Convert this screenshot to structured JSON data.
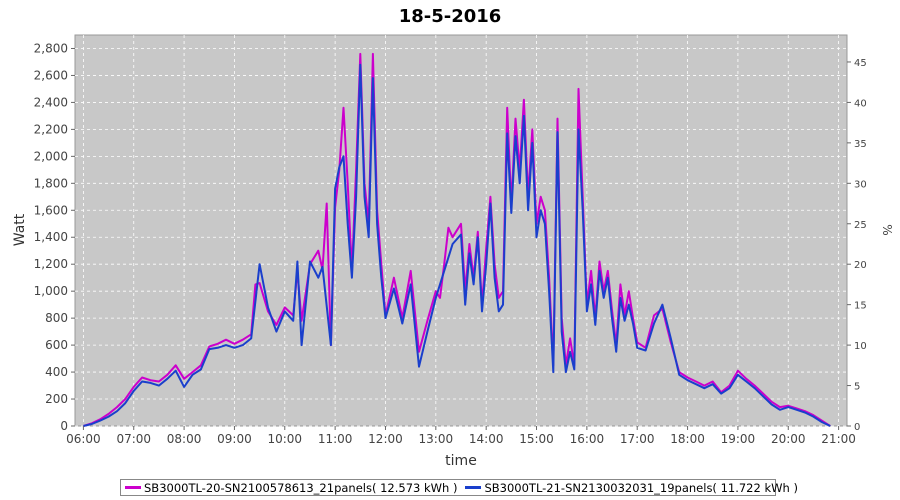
{
  "chart_data": {
    "type": "line",
    "title": "18-5-2016",
    "xlabel": "time",
    "ylabel": "Watt",
    "y2label": "%",
    "ylim": [
      0,
      2900
    ],
    "y2lim": [
      0,
      48.333
    ],
    "xlim": [
      "05:50",
      "21:10"
    ],
    "grid": true,
    "legend_position": "bottom",
    "x_ticks": [
      "06:00",
      "07:00",
      "08:00",
      "09:00",
      "10:00",
      "11:00",
      "12:00",
      "13:00",
      "14:00",
      "15:00",
      "16:00",
      "17:00",
      "18:00",
      "19:00",
      "20:00",
      "21:00"
    ],
    "y_ticks": [
      "0",
      "200",
      "400",
      "600",
      "800",
      "1,000",
      "1,200",
      "1,400",
      "1,600",
      "1,800",
      "2,000",
      "2,200",
      "2,400",
      "2,600",
      "2,800"
    ],
    "y2_ticks": [
      "0",
      "5",
      "10",
      "15",
      "20",
      "25",
      "30",
      "35",
      "40",
      "45"
    ],
    "series": [
      {
        "name": "SB3000TL-20-SN2100578613_21panels( 12.573 kWh )",
        "color": "#cc00cc",
        "points": [
          [
            "06:00",
            0
          ],
          [
            "06:10",
            20
          ],
          [
            "06:20",
            50
          ],
          [
            "06:30",
            90
          ],
          [
            "06:40",
            140
          ],
          [
            "06:50",
            200
          ],
          [
            "07:00",
            290
          ],
          [
            "07:10",
            360
          ],
          [
            "07:20",
            340
          ],
          [
            "07:30",
            330
          ],
          [
            "07:40",
            380
          ],
          [
            "07:50",
            450
          ],
          [
            "08:00",
            350
          ],
          [
            "08:10",
            400
          ],
          [
            "08:20",
            450
          ],
          [
            "08:30",
            590
          ],
          [
            "08:40",
            610
          ],
          [
            "08:50",
            640
          ],
          [
            "09:00",
            610
          ],
          [
            "09:10",
            640
          ],
          [
            "09:20",
            680
          ],
          [
            "09:25",
            1050
          ],
          [
            "09:30",
            1060
          ],
          [
            "09:40",
            850
          ],
          [
            "09:50",
            750
          ],
          [
            "10:00",
            880
          ],
          [
            "10:10",
            820
          ],
          [
            "10:15",
            1150
          ],
          [
            "10:20",
            780
          ],
          [
            "10:30",
            1200
          ],
          [
            "10:40",
            1300
          ],
          [
            "10:45",
            1160
          ],
          [
            "10:50",
            1650
          ],
          [
            "10:55",
            600
          ],
          [
            "11:00",
            1620
          ],
          [
            "11:05",
            1900
          ],
          [
            "11:10",
            2360
          ],
          [
            "11:15",
            1800
          ],
          [
            "11:20",
            1150
          ],
          [
            "11:25",
            1900
          ],
          [
            "11:30",
            2760
          ],
          [
            "11:35",
            1800
          ],
          [
            "11:40",
            1500
          ],
          [
            "11:45",
            2760
          ],
          [
            "11:50",
            1600
          ],
          [
            "11:55",
            1200
          ],
          [
            "12:00",
            820
          ],
          [
            "12:10",
            1100
          ],
          [
            "12:20",
            800
          ],
          [
            "12:30",
            1150
          ],
          [
            "12:40",
            550
          ],
          [
            "12:50",
            780
          ],
          [
            "13:00",
            1000
          ],
          [
            "13:05",
            950
          ],
          [
            "13:10",
            1200
          ],
          [
            "13:15",
            1470
          ],
          [
            "13:20",
            1400
          ],
          [
            "13:30",
            1500
          ],
          [
            "13:35",
            1000
          ],
          [
            "13:40",
            1350
          ],
          [
            "13:45",
            1100
          ],
          [
            "13:50",
            1440
          ],
          [
            "13:55",
            900
          ],
          [
            "14:00",
            1320
          ],
          [
            "14:05",
            1700
          ],
          [
            "14:10",
            1200
          ],
          [
            "14:15",
            950
          ],
          [
            "14:20",
            1000
          ],
          [
            "14:25",
            2360
          ],
          [
            "14:30",
            1640
          ],
          [
            "14:35",
            2280
          ],
          [
            "14:40",
            1900
          ],
          [
            "14:45",
            2420
          ],
          [
            "14:50",
            1700
          ],
          [
            "14:55",
            2200
          ],
          [
            "15:00",
            1500
          ],
          [
            "15:05",
            1700
          ],
          [
            "15:10",
            1600
          ],
          [
            "15:15",
            1100
          ],
          [
            "15:20",
            450
          ],
          [
            "15:25",
            2280
          ],
          [
            "15:30",
            800
          ],
          [
            "15:35",
            450
          ],
          [
            "15:40",
            650
          ],
          [
            "15:45",
            450
          ],
          [
            "15:50",
            2500
          ],
          [
            "15:55",
            1700
          ],
          [
            "16:00",
            900
          ],
          [
            "16:05",
            1150
          ],
          [
            "16:10",
            800
          ],
          [
            "16:15",
            1220
          ],
          [
            "16:20",
            1000
          ],
          [
            "16:25",
            1150
          ],
          [
            "16:30",
            860
          ],
          [
            "16:35",
            600
          ],
          [
            "16:40",
            1050
          ],
          [
            "16:45",
            820
          ],
          [
            "16:50",
            1000
          ],
          [
            "16:55",
            800
          ],
          [
            "17:00",
            620
          ],
          [
            "17:10",
            580
          ],
          [
            "17:20",
            820
          ],
          [
            "17:30",
            870
          ],
          [
            "17:40",
            620
          ],
          [
            "17:50",
            400
          ],
          [
            "18:00",
            360
          ],
          [
            "18:10",
            330
          ],
          [
            "18:20",
            300
          ],
          [
            "18:30",
            330
          ],
          [
            "18:40",
            250
          ],
          [
            "18:50",
            300
          ],
          [
            "19:00",
            410
          ],
          [
            "19:10",
            350
          ],
          [
            "19:20",
            300
          ],
          [
            "19:30",
            240
          ],
          [
            "19:40",
            180
          ],
          [
            "19:50",
            140
          ],
          [
            "20:00",
            150
          ],
          [
            "20:10",
            130
          ],
          [
            "20:20",
            110
          ],
          [
            "20:30",
            80
          ],
          [
            "20:40",
            40
          ],
          [
            "20:50",
            0
          ]
        ]
      },
      {
        "name": "SB3000TL-21-SN2130032031_19panels( 11.722 kWh )",
        "color": "#1a3fcc",
        "points": [
          [
            "06:00",
            0
          ],
          [
            "06:10",
            15
          ],
          [
            "06:20",
            40
          ],
          [
            "06:30",
            70
          ],
          [
            "06:40",
            110
          ],
          [
            "06:50",
            170
          ],
          [
            "07:00",
            260
          ],
          [
            "07:10",
            330
          ],
          [
            "07:20",
            320
          ],
          [
            "07:30",
            300
          ],
          [
            "07:40",
            350
          ],
          [
            "07:50",
            410
          ],
          [
            "08:00",
            290
          ],
          [
            "08:10",
            380
          ],
          [
            "08:20",
            420
          ],
          [
            "08:30",
            570
          ],
          [
            "08:40",
            580
          ],
          [
            "08:50",
            600
          ],
          [
            "09:00",
            580
          ],
          [
            "09:10",
            600
          ],
          [
            "09:20",
            650
          ],
          [
            "09:30",
            1200
          ],
          [
            "09:40",
            880
          ],
          [
            "09:50",
            700
          ],
          [
            "10:00",
            850
          ],
          [
            "10:10",
            780
          ],
          [
            "10:15",
            1220
          ],
          [
            "10:20",
            600
          ],
          [
            "10:30",
            1220
          ],
          [
            "10:40",
            1100
          ],
          [
            "10:45",
            1180
          ],
          [
            "10:55",
            600
          ],
          [
            "11:00",
            1760
          ],
          [
            "11:05",
            1920
          ],
          [
            "11:10",
            2000
          ],
          [
            "11:15",
            1500
          ],
          [
            "11:20",
            1100
          ],
          [
            "11:25",
            1700
          ],
          [
            "11:30",
            2680
          ],
          [
            "11:35",
            1700
          ],
          [
            "11:40",
            1400
          ],
          [
            "11:45",
            2580
          ],
          [
            "11:50",
            1500
          ],
          [
            "11:55",
            1100
          ],
          [
            "12:00",
            800
          ],
          [
            "12:10",
            1020
          ],
          [
            "12:20",
            760
          ],
          [
            "12:30",
            1050
          ],
          [
            "12:40",
            440
          ],
          [
            "12:50",
            700
          ],
          [
            "13:00",
            950
          ],
          [
            "13:10",
            1150
          ],
          [
            "13:20",
            1350
          ],
          [
            "13:30",
            1420
          ],
          [
            "13:35",
            900
          ],
          [
            "13:40",
            1280
          ],
          [
            "13:45",
            1050
          ],
          [
            "13:50",
            1400
          ],
          [
            "13:55",
            850
          ],
          [
            "14:00",
            1200
          ],
          [
            "14:05",
            1650
          ],
          [
            "14:10",
            1100
          ],
          [
            "14:15",
            850
          ],
          [
            "14:20",
            900
          ],
          [
            "14:25",
            2170
          ],
          [
            "14:30",
            1580
          ],
          [
            "14:35",
            2150
          ],
          [
            "14:40",
            1800
          ],
          [
            "14:45",
            2300
          ],
          [
            "14:50",
            1600
          ],
          [
            "14:55",
            2100
          ],
          [
            "15:00",
            1400
          ],
          [
            "15:05",
            1600
          ],
          [
            "15:10",
            1500
          ],
          [
            "15:15",
            1000
          ],
          [
            "15:20",
            400
          ],
          [
            "15:25",
            2180
          ],
          [
            "15:30",
            700
          ],
          [
            "15:35",
            400
          ],
          [
            "15:40",
            550
          ],
          [
            "15:45",
            420
          ],
          [
            "15:50",
            2200
          ],
          [
            "15:55",
            1600
          ],
          [
            "16:00",
            850
          ],
          [
            "16:05",
            1050
          ],
          [
            "16:10",
            750
          ],
          [
            "16:15",
            1150
          ],
          [
            "16:20",
            950
          ],
          [
            "16:25",
            1100
          ],
          [
            "16:30",
            800
          ],
          [
            "16:35",
            550
          ],
          [
            "16:40",
            950
          ],
          [
            "16:45",
            780
          ],
          [
            "16:50",
            900
          ],
          [
            "16:55",
            760
          ],
          [
            "17:00",
            580
          ],
          [
            "17:10",
            560
          ],
          [
            "17:20",
            760
          ],
          [
            "17:30",
            900
          ],
          [
            "17:40",
            650
          ],
          [
            "17:50",
            380
          ],
          [
            "18:00",
            340
          ],
          [
            "18:10",
            310
          ],
          [
            "18:20",
            280
          ],
          [
            "18:30",
            310
          ],
          [
            "18:40",
            240
          ],
          [
            "18:50",
            280
          ],
          [
            "19:00",
            380
          ],
          [
            "19:10",
            330
          ],
          [
            "19:20",
            280
          ],
          [
            "19:30",
            220
          ],
          [
            "19:40",
            160
          ],
          [
            "19:50",
            120
          ],
          [
            "20:00",
            140
          ],
          [
            "20:10",
            120
          ],
          [
            "20:20",
            100
          ],
          [
            "20:30",
            70
          ],
          [
            "20:40",
            30
          ],
          [
            "20:50",
            0
          ]
        ]
      }
    ]
  }
}
